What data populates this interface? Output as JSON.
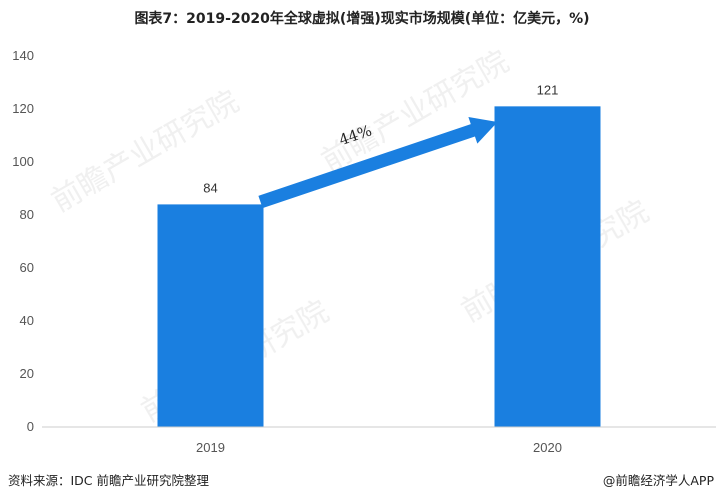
{
  "chart_data": {
    "type": "bar",
    "title": "图表7：2019-2020年全球虚拟(增强)现实市场规模(单位：亿美元，%)",
    "categories": [
      "2019",
      "2020"
    ],
    "values": [
      84,
      121
    ],
    "data_labels": [
      "84",
      "121"
    ],
    "ylim": [
      0,
      140
    ],
    "yticks": [
      0,
      20,
      40,
      60,
      80,
      100,
      120,
      140
    ],
    "xlabel": "",
    "ylabel": "",
    "grid": false,
    "annotation": {
      "text": "44%",
      "type": "growth-arrow"
    },
    "colors": {
      "bar": "#1a7fe0",
      "arrow": "#1a7fe0"
    }
  },
  "footer": {
    "source": "资料来源：IDC 前瞻产业研究院整理",
    "brand": "@前瞻经济学人APP"
  },
  "watermark": {
    "text": "前瞻产业研究院"
  }
}
